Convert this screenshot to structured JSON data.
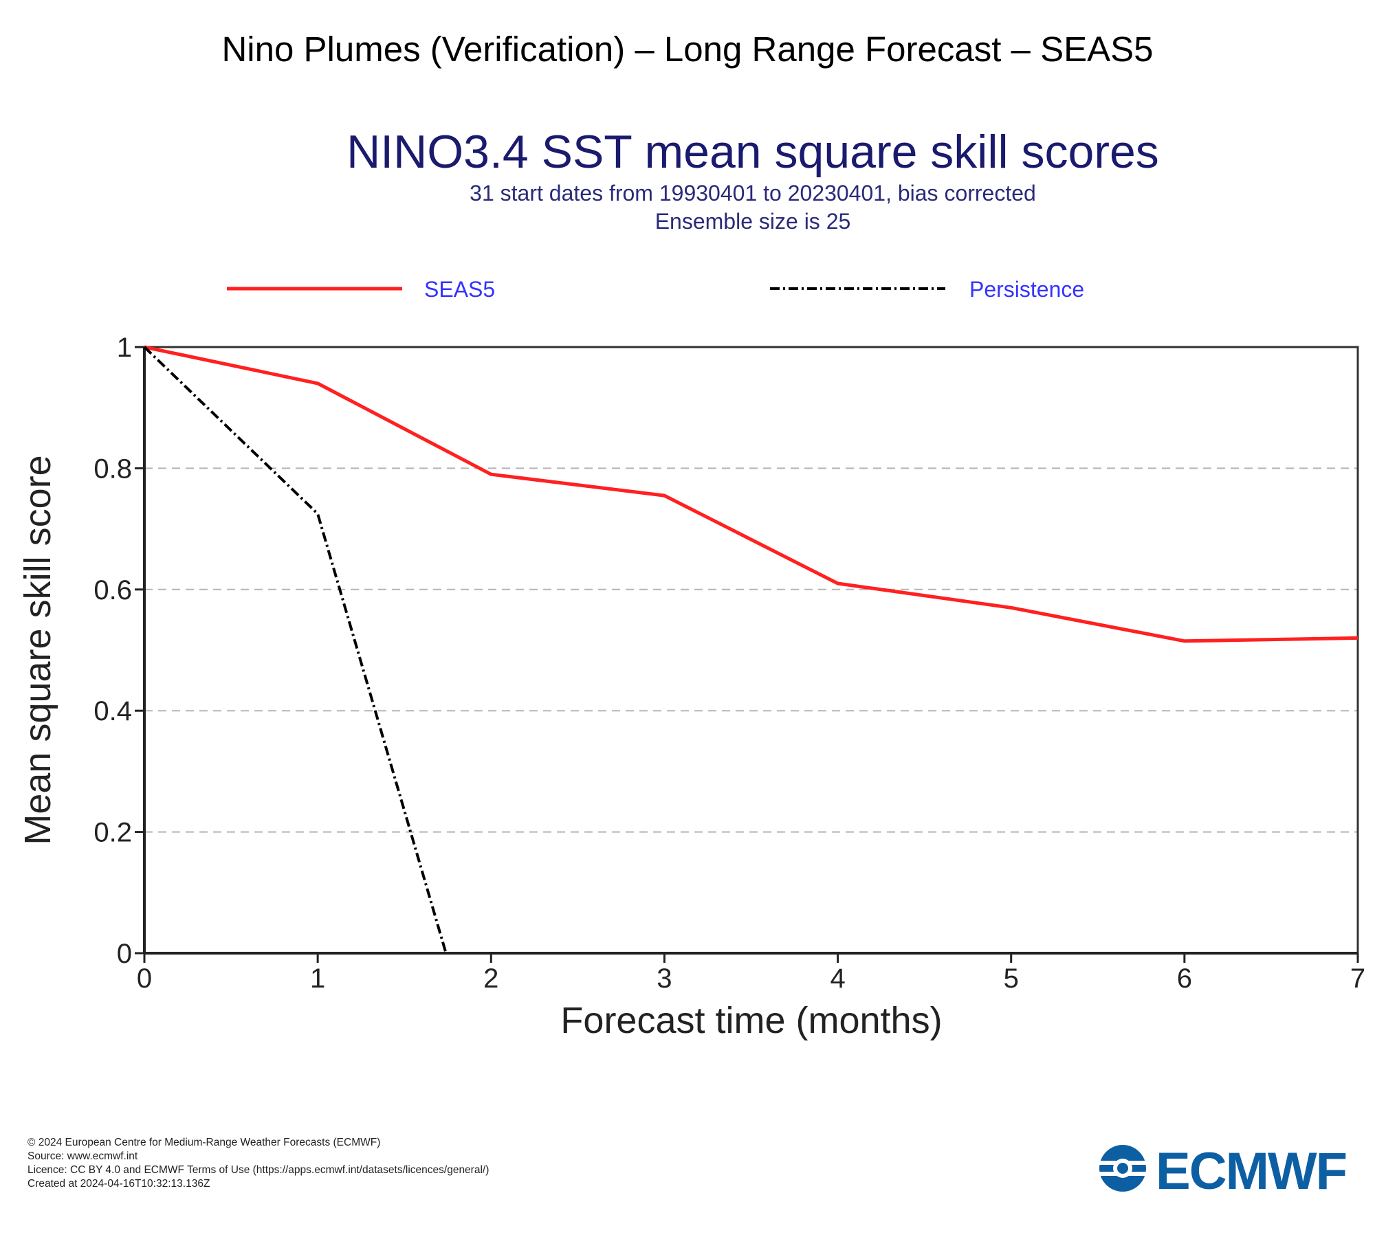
{
  "page": {
    "title": "Nino Plumes (Verification) – Long Range Forecast – SEAS5"
  },
  "chart_data": {
    "type": "line",
    "title": "NINO3.4 SST mean square skill scores",
    "subtitle_lines": [
      "31 start dates from 19930401 to 20230401, bias corrected",
      "Ensemble size is 25"
    ],
    "xlabel": "Forecast time (months)",
    "ylabel": "Mean square skill score",
    "xlim": [
      0,
      7
    ],
    "ylim": [
      0,
      1
    ],
    "x_ticks": [
      0,
      1,
      2,
      3,
      4,
      5,
      6,
      7
    ],
    "x_tick_labels": [
      "0",
      "1",
      "2",
      "3",
      "4",
      "5",
      "6",
      "7"
    ],
    "y_ticks": [
      0,
      0.2,
      0.4,
      0.6,
      0.8,
      1
    ],
    "y_tick_labels": [
      "0",
      "0.2",
      "0.4",
      "0.6",
      "0.8",
      "1"
    ],
    "grid": "horizontal dashed",
    "legend_position": "top",
    "series": [
      {
        "name": "SEAS5",
        "color": "#ff2020",
        "style": "solid",
        "x": [
          0,
          1,
          2,
          3,
          4,
          5,
          6,
          7
        ],
        "y": [
          1.0,
          0.94,
          0.79,
          0.755,
          0.61,
          0.57,
          0.515,
          0.52
        ]
      },
      {
        "name": "Persistence",
        "color": "#000000",
        "style": "dash-dot",
        "x": [
          0,
          1,
          1.74
        ],
        "y": [
          1.0,
          0.725,
          0.0
        ]
      }
    ],
    "title_color": "#1a1a6e",
    "subtitle_color": "#2a2a7a",
    "legend_text_color": "#3333ff"
  },
  "footer": {
    "lines": [
      "© 2024 European Centre for Medium-Range Weather Forecasts (ECMWF)",
      "Source: www.ecmwf.int",
      "Licence: CC BY 4.0 and ECMWF Terms of Use (https://apps.ecmwf.int/datasets/licences/general/)",
      "Created at 2024-04-16T10:32:13.136Z"
    ]
  },
  "logo": {
    "text": "ECMWF",
    "color": "#0d5fa3"
  }
}
